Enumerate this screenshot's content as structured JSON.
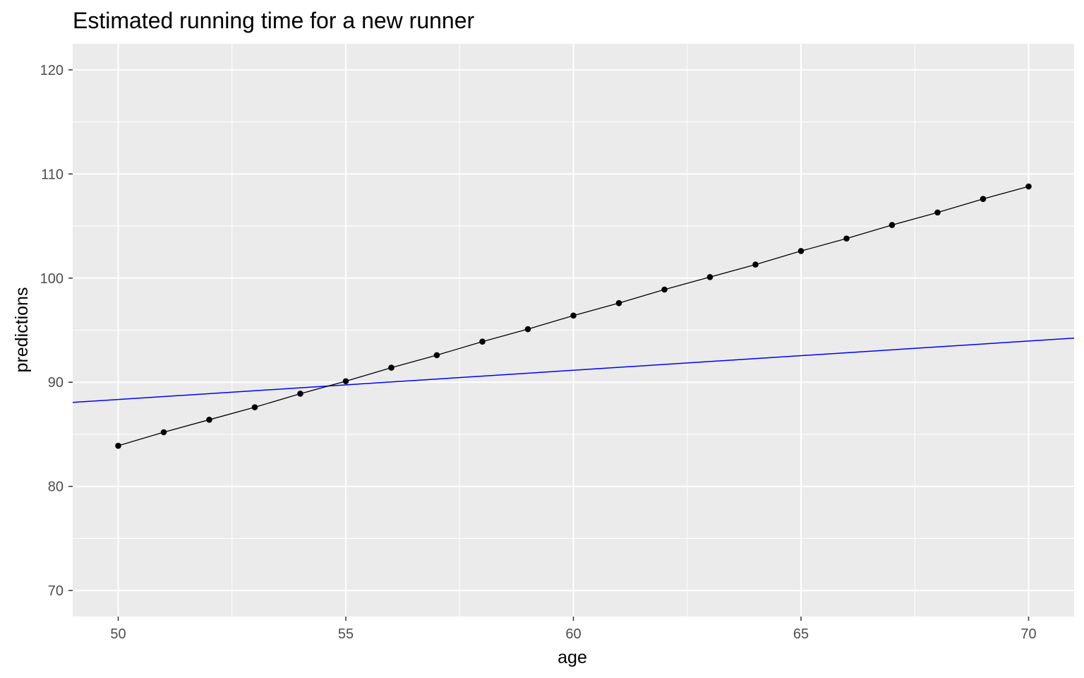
{
  "chart_data": {
    "type": "line",
    "title": "Estimated running time for a new runner",
    "xlabel": "age",
    "ylabel": "predictions",
    "xlim": [
      49,
      71
    ],
    "ylim": [
      67.5,
      122.5
    ],
    "x_ticks": [
      50,
      55,
      60,
      65,
      70
    ],
    "y_ticks": [
      70,
      80,
      90,
      100,
      110,
      120
    ],
    "grid": true,
    "colors": {
      "panel": "#ebebeb",
      "grid": "#ffffff",
      "points": "#000000",
      "line": "#000000",
      "reference_line": "#0000ff"
    },
    "series": [
      {
        "x": [
          50,
          51,
          52,
          53,
          54,
          55,
          56,
          57,
          58,
          59,
          60,
          61,
          62,
          63,
          64,
          65,
          66,
          67,
          68,
          69,
          70
        ],
        "y": [
          83.9,
          85.2,
          86.4,
          87.6,
          88.9,
          90.1,
          91.4,
          92.6,
          93.9,
          95.1,
          96.4,
          97.6,
          98.9,
          100.1,
          101.3,
          102.6,
          103.8,
          105.1,
          106.3,
          107.6,
          108.8
        ]
      }
    ],
    "reference_line": {
      "intercept": 74.32,
      "slope": 0.2805
    }
  }
}
